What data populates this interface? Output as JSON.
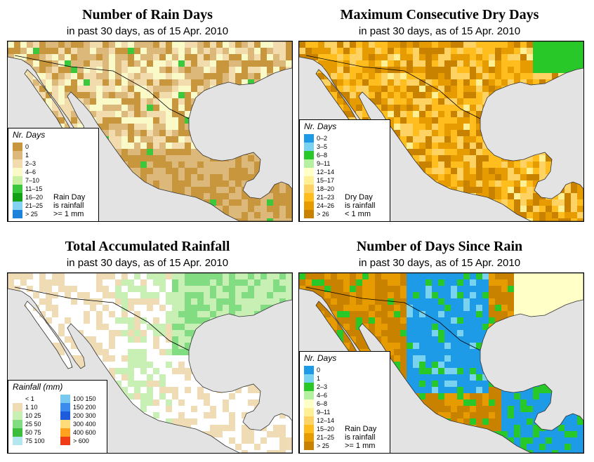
{
  "panels": [
    {
      "title": "Number of Rain Days",
      "subtitle": "in past 30 days, as of  15 Apr. 2010",
      "legend_title": "Nr. Days",
      "legend_items": [
        {
          "label": "0",
          "color": "#c8963c"
        },
        {
          "label": "1",
          "color": "#dcb87a"
        },
        {
          "label": "2–3",
          "color": "#f2dcae"
        },
        {
          "label": "4–6",
          "color": "#fafac8"
        },
        {
          "label": "7–10",
          "color": "#c8f0a0"
        },
        {
          "label": "11–15",
          "color": "#3cc83c"
        },
        {
          "label": "16–20",
          "color": "#14a014"
        },
        {
          "label": "21–25",
          "color": "#82d2f0"
        },
        {
          "label": "> 25",
          "color": "#1e82dc"
        }
      ],
      "note": "Rain Day\nis rainfall\n>= 1 mm",
      "map_palette": [
        "#c8963c",
        "#dcb87a",
        "#f2dcae",
        "#fafac8",
        "#c8f0a0",
        "#3cc83c"
      ]
    },
    {
      "title": "Maximum Consecutive Dry Days",
      "subtitle": "in past 30 days, as of  15 Apr. 2010",
      "legend_title": "Nr. Days",
      "legend_items": [
        {
          "label": "0–2",
          "color": "#1e9be6"
        },
        {
          "label": "3–5",
          "color": "#78d2f0"
        },
        {
          "label": "6–8",
          "color": "#28c828"
        },
        {
          "label": "9–11",
          "color": "#b4f0a0"
        },
        {
          "label": "12–14",
          "color": "#ffffc8"
        },
        {
          "label": "15–17",
          "color": "#fff096"
        },
        {
          "label": "18–20",
          "color": "#ffd264"
        },
        {
          "label": "21–23",
          "color": "#ffbe1e"
        },
        {
          "label": "24–26",
          "color": "#e69b00"
        },
        {
          "label": "> 26",
          "color": "#c88200"
        }
      ],
      "note": "Dry Day\nis rainfall\n< 1 mm",
      "map_palette": [
        "#e69b00",
        "#ffbe1e",
        "#ffd264",
        "#c88200",
        "#fff096",
        "#28c828"
      ]
    },
    {
      "title": "Total Accumulated Rainfall",
      "subtitle": "in past 30 days, as of  15 Apr. 2010",
      "legend_title": "Rainfall (mm)",
      "legend_items": [
        {
          "label": "< 1",
          "color": "#ffffff"
        },
        {
          "label": "1    10",
          "color": "#f0dcb4"
        },
        {
          "label": "10   25",
          "color": "#c8f0b4"
        },
        {
          "label": "25   50",
          "color": "#82dc82"
        },
        {
          "label": "50   75",
          "color": "#3cbe3c"
        },
        {
          "label": "75  100",
          "color": "#b4e6f0"
        },
        {
          "label": "100  150",
          "color": "#78c8f0"
        },
        {
          "label": "150  200",
          "color": "#3c8cf0"
        },
        {
          "label": "200  300",
          "color": "#1e5adc"
        },
        {
          "label": "300  400",
          "color": "#ffdc78"
        },
        {
          "label": "400  600",
          "color": "#ffa01e"
        },
        {
          "label": "> 600",
          "color": "#f03c14"
        }
      ],
      "note": "",
      "map_palette": [
        "#ffffff",
        "#f0dcb4",
        "#c8f0b4",
        "#82dc82",
        "#ffffff",
        "#f0dcb4"
      ]
    },
    {
      "title": "Number of Days Since Rain",
      "subtitle": "in past 30 days, as of  15 Apr. 2010",
      "legend_title": "Nr. Days",
      "legend_items": [
        {
          "label": "0",
          "color": "#1e9be6"
        },
        {
          "label": "1",
          "color": "#78d2f0"
        },
        {
          "label": "2–3",
          "color": "#28c828"
        },
        {
          "label": "4–6",
          "color": "#b4f0a0"
        },
        {
          "label": "6–8",
          "color": "#ffffc8"
        },
        {
          "label": "9–11",
          "color": "#fff096"
        },
        {
          "label": "12–14",
          "color": "#ffd264"
        },
        {
          "label": "15–20",
          "color": "#ffbe1e"
        },
        {
          "label": "21–25",
          "color": "#e69b00"
        },
        {
          "label": "> 25",
          "color": "#c88200"
        }
      ],
      "note": "Rain Day\nis rainfall\n>= 1 mm",
      "map_palette": [
        "#c88200",
        "#e69b00",
        "#1e9be6",
        "#28c828",
        "#ffffc8",
        "#78d2f0"
      ]
    }
  ]
}
